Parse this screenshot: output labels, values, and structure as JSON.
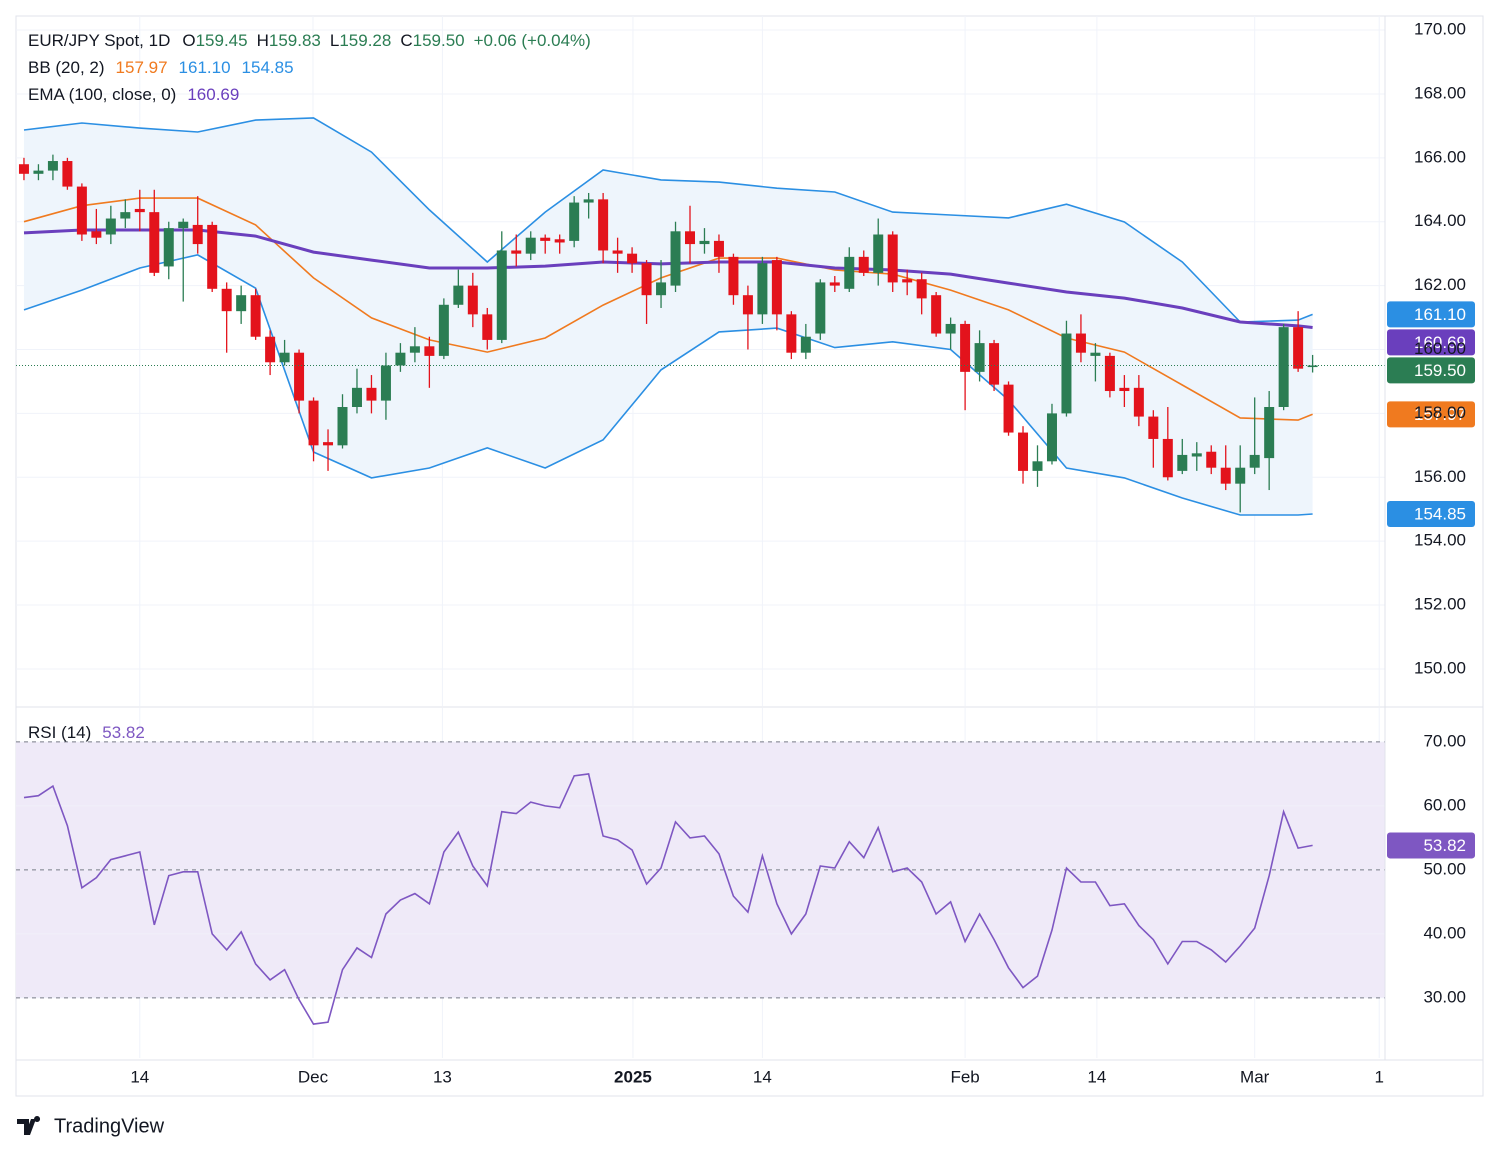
{
  "chart_data": [
    {
      "type": "candlestick",
      "title": "EUR/JPY Spot, 1D",
      "ohlc_letters": [
        "O",
        "H",
        "L",
        "C"
      ],
      "change": "+0.06 (+0.04%)",
      "up_color": "#2b7d53",
      "down_color": "#e3131c",
      "x": [
        0,
        1,
        2,
        3,
        4,
        5,
        6,
        7,
        8,
        9,
        10,
        11,
        12,
        13,
        14,
        15,
        16,
        17,
        18,
        19,
        20,
        21,
        22,
        23,
        24,
        25,
        26,
        27,
        28,
        29,
        30,
        31,
        32,
        33,
        34,
        35,
        36,
        37,
        38,
        39,
        40,
        41,
        42,
        43,
        44,
        45,
        46,
        47,
        48,
        49,
        50,
        51,
        52,
        53,
        54,
        55,
        56,
        57,
        58,
        59,
        60,
        61,
        62,
        63,
        64,
        65,
        66,
        67,
        68,
        69,
        70,
        71,
        72,
        73,
        74,
        75,
        76,
        77,
        78,
        79,
        80,
        81,
        82,
        83,
        84,
        85,
        86,
        87,
        88,
        89
      ],
      "open": [
        165.8,
        165.5,
        165.6,
        165.9,
        165.1,
        163.7,
        163.6,
        164.1,
        164.4,
        164.3,
        162.6,
        163.8,
        163.9,
        163.9,
        161.9,
        161.2,
        161.7,
        160.4,
        159.6,
        159.9,
        158.4,
        157.1,
        157.0,
        158.2,
        158.8,
        158.4,
        159.5,
        159.9,
        160.1,
        159.8,
        161.4,
        162.0,
        161.1,
        160.3,
        163.1,
        163.0,
        163.5,
        163.45,
        163.4,
        164.6,
        164.7,
        163.1,
        163.0,
        162.7,
        161.7,
        162.0,
        163.7,
        163.3,
        163.4,
        162.9,
        161.7,
        161.1,
        162.8,
        161.1,
        159.9,
        160.5,
        162.1,
        161.9,
        162.9,
        162.4,
        163.6,
        162.2,
        162.2,
        161.7,
        160.5,
        160.8,
        159.3,
        160.2,
        158.9,
        157.4,
        156.2,
        156.5,
        158.0,
        160.5,
        159.8,
        159.8,
        158.8,
        158.8,
        157.9,
        157.2,
        156.2,
        156.65,
        156.8,
        156.3,
        155.8,
        156.3,
        156.6,
        158.2,
        160.7,
        159.45
      ],
      "high": [
        166.0,
        165.8,
        166.1,
        166.0,
        165.2,
        164.4,
        164.5,
        164.7,
        165.0,
        165.0,
        164.0,
        164.1,
        164.8,
        164.0,
        162.1,
        162.0,
        161.9,
        160.6,
        160.3,
        160.0,
        158.5,
        157.5,
        158.6,
        159.4,
        159.2,
        159.9,
        160.2,
        160.7,
        160.4,
        161.6,
        162.5,
        162.4,
        161.3,
        163.7,
        163.6,
        163.7,
        163.6,
        163.6,
        164.8,
        164.9,
        164.9,
        163.5,
        163.2,
        162.8,
        162.8,
        164.0,
        164.5,
        163.8,
        163.6,
        163.0,
        162.0,
        162.9,
        162.9,
        161.2,
        160.8,
        162.2,
        162.3,
        163.2,
        163.1,
        164.1,
        163.7,
        162.5,
        162.4,
        161.8,
        161.0,
        160.9,
        160.6,
        160.3,
        159.0,
        157.6,
        157.0,
        158.3,
        160.9,
        161.1,
        160.2,
        159.9,
        159.2,
        159.2,
        158.1,
        158.2,
        157.2,
        157.1,
        157.0,
        157.0,
        157.0,
        158.5,
        158.7,
        160.8,
        161.2,
        159.83
      ],
      "low": [
        165.3,
        165.3,
        165.3,
        165.0,
        163.4,
        163.3,
        163.3,
        163.8,
        163.7,
        162.3,
        162.2,
        161.5,
        163.0,
        161.8,
        159.9,
        160.8,
        160.3,
        159.2,
        159.5,
        158.0,
        156.5,
        156.2,
        156.9,
        158.0,
        158.0,
        157.8,
        159.3,
        159.6,
        158.8,
        159.7,
        161.3,
        160.7,
        160.0,
        160.2,
        162.6,
        162.8,
        163.0,
        163.0,
        163.2,
        164.1,
        162.7,
        162.4,
        162.4,
        160.8,
        161.3,
        161.8,
        162.7,
        163.0,
        162.4,
        161.4,
        160.0,
        160.8,
        160.6,
        159.7,
        159.7,
        160.3,
        161.8,
        161.8,
        162.3,
        162.0,
        161.8,
        161.7,
        161.1,
        160.4,
        160.0,
        158.1,
        159.0,
        158.7,
        157.3,
        155.8,
        155.7,
        156.4,
        157.9,
        159.6,
        159.0,
        158.5,
        158.2,
        157.6,
        156.3,
        155.9,
        156.1,
        156.2,
        156.1,
        155.6,
        154.9,
        156.1,
        155.6,
        158.1,
        159.3,
        159.28
      ],
      "close": [
        165.5,
        165.6,
        165.9,
        165.1,
        163.6,
        163.5,
        164.1,
        164.3,
        164.3,
        162.4,
        163.8,
        164.0,
        163.3,
        161.9,
        161.2,
        161.7,
        160.4,
        159.6,
        159.9,
        158.4,
        157.0,
        157.0,
        158.2,
        158.8,
        158.4,
        159.5,
        159.9,
        160.1,
        159.8,
        161.4,
        162.0,
        161.1,
        160.3,
        163.1,
        163.0,
        163.5,
        163.4,
        163.35,
        164.6,
        164.7,
        163.1,
        163.0,
        162.7,
        161.7,
        162.1,
        163.7,
        163.3,
        163.4,
        162.9,
        161.7,
        161.1,
        162.7,
        161.1,
        159.9,
        160.4,
        162.1,
        162.0,
        162.9,
        162.4,
        163.6,
        162.1,
        162.1,
        161.6,
        160.5,
        160.8,
        159.3,
        160.2,
        158.9,
        157.4,
        156.2,
        156.5,
        158.0,
        160.5,
        159.9,
        159.9,
        158.7,
        158.7,
        157.9,
        157.2,
        156.0,
        156.7,
        156.75,
        156.3,
        155.8,
        156.3,
        156.7,
        158.2,
        160.7,
        159.4,
        159.5
      ],
      "close_labels": [
        null,
        null,
        null,
        null,
        null,
        null,
        null,
        null,
        null,
        null,
        null,
        null,
        null,
        null,
        null,
        null,
        null,
        null,
        null,
        null,
        null,
        null,
        null,
        null,
        null,
        null,
        null,
        null,
        null,
        null,
        null,
        null,
        null,
        null,
        null,
        null,
        null,
        null,
        null,
        null,
        null,
        null,
        null,
        null,
        null,
        null,
        null,
        null,
        null,
        null,
        null,
        null,
        null,
        null,
        null,
        null,
        null,
        null,
        null,
        null,
        null,
        null,
        null,
        null,
        null,
        null,
        null,
        null,
        null,
        null,
        null,
        null,
        null,
        null,
        null,
        null,
        null,
        null,
        null,
        null,
        null,
        null,
        null,
        null,
        null,
        null,
        null,
        null,
        null,
        "159.50"
      ],
      "bollinger": {
        "name": "BB (20, 2)",
        "fill": "#eef5fc",
        "x": [
          0,
          4,
          8,
          12,
          16,
          20,
          24,
          28,
          32,
          36,
          40,
          44,
          48,
          52,
          56,
          60,
          64,
          68,
          72,
          76,
          80,
          84,
          88,
          89
        ],
        "basis": {
          "color": "#f07a1f",
          "values": [
            164.0,
            164.5,
            164.74,
            164.74,
            163.9,
            162.24,
            160.99,
            160.3,
            159.92,
            160.36,
            161.39,
            162.24,
            162.86,
            162.86,
            162.49,
            162.36,
            161.86,
            161.24,
            160.36,
            159.92,
            158.89,
            157.86,
            157.79,
            157.97
          ]
        },
        "upper": {
          "color": "#2b8fe3",
          "values": [
            166.87,
            167.09,
            166.93,
            166.81,
            167.18,
            167.25,
            166.18,
            164.37,
            162.74,
            164.3,
            165.62,
            165.31,
            165.24,
            165.05,
            164.93,
            164.3,
            164.21,
            164.12,
            164.55,
            163.99,
            162.74,
            160.86,
            160.92,
            161.1
          ],
          "value_labels": [
            null,
            null,
            null,
            null,
            null,
            null,
            null,
            null,
            null,
            null,
            null,
            null,
            null,
            null,
            null,
            null,
            null,
            null,
            null,
            null,
            null,
            null,
            null,
            "161.10"
          ]
        },
        "lower": {
          "color": "#2b8fe3",
          "values": [
            161.24,
            161.86,
            162.55,
            162.96,
            161.92,
            156.79,
            155.98,
            156.29,
            156.92,
            156.29,
            157.17,
            159.36,
            160.55,
            160.67,
            160.06,
            160.24,
            160.0,
            158.42,
            156.29,
            155.98,
            155.35,
            154.82,
            154.82,
            154.85
          ]
        }
      },
      "ema": {
        "name": "EMA (100, close, 0)",
        "color": "#6a3fbd",
        "x": [
          0,
          4,
          8,
          12,
          16,
          20,
          24,
          28,
          32,
          36,
          40,
          44,
          48,
          52,
          56,
          60,
          64,
          68,
          72,
          76,
          80,
          84,
          88,
          89
        ],
        "values": [
          163.65,
          163.74,
          163.74,
          163.74,
          163.55,
          163.05,
          162.8,
          162.55,
          162.55,
          162.61,
          162.74,
          162.68,
          162.74,
          162.74,
          162.55,
          162.49,
          162.36,
          162.08,
          161.8,
          161.61,
          161.3,
          160.86,
          160.74,
          160.69
        ]
      },
      "xlim": [
        -0.55,
        94
      ],
      "xticks": [
        {
          "value": 8,
          "label": "14"
        },
        {
          "value": 19.96,
          "label": "Dec"
        },
        {
          "value": 28.9,
          "label": "13"
        },
        {
          "value": 42.06,
          "label": "2025",
          "bold": true
        },
        {
          "value": 51,
          "label": "14"
        },
        {
          "value": 65,
          "label": "Feb"
        },
        {
          "value": 74.1,
          "label": "14"
        },
        {
          "value": 85,
          "label": "Mar"
        },
        {
          "value": 93.6,
          "label": "1"
        }
      ],
      "ylim": [
        148.84,
        170.44
      ],
      "yticks": [
        {
          "value": 150,
          "label": "150.00"
        },
        {
          "value": 152,
          "label": "152.00"
        },
        {
          "value": 154,
          "label": "154.00"
        },
        {
          "value": 156,
          "label": "156.00"
        },
        {
          "value": 158,
          "label": "158.00"
        },
        {
          "value": 160,
          "label": "160.00"
        },
        {
          "value": 162,
          "label": "162.00"
        },
        {
          "value": 164,
          "label": "164.00"
        },
        {
          "value": 166,
          "label": "166.00"
        },
        {
          "value": 168,
          "label": "168.00"
        },
        {
          "value": 170,
          "label": "170.00"
        }
      ],
      "grid": true
    },
    {
      "type": "line",
      "title": "RSI (14)",
      "color": "#7e57c2",
      "band_color": "#efeaf8",
      "x": [
        0,
        1,
        2,
        3,
        4,
        5,
        6,
        7,
        8,
        9,
        10,
        11,
        12,
        13,
        14,
        15,
        16,
        17,
        18,
        19,
        20,
        21,
        22,
        23,
        24,
        25,
        26,
        27,
        28,
        29,
        30,
        31,
        32,
        33,
        34,
        35,
        36,
        37,
        38,
        39,
        40,
        41,
        42,
        43,
        44,
        45,
        46,
        47,
        48,
        49,
        50,
        51,
        52,
        53,
        54,
        55,
        56,
        57,
        58,
        59,
        60,
        61,
        62,
        63,
        64,
        65,
        66,
        67,
        68,
        69,
        70,
        71,
        72,
        73,
        74,
        75,
        76,
        77,
        78,
        79,
        80,
        81,
        82,
        83,
        84,
        85,
        86,
        87,
        88,
        89
      ],
      "values": [
        61.3,
        61.6,
        63.1,
        56.9,
        47.2,
        48.8,
        51.6,
        52.2,
        52.8,
        41.4,
        49.1,
        49.7,
        49.7,
        40.0,
        37.5,
        40.3,
        35.3,
        32.8,
        34.4,
        29.7,
        25.9,
        26.2,
        34.4,
        37.8,
        36.3,
        43.1,
        45.3,
        46.3,
        44.7,
        52.8,
        55.9,
        50.6,
        47.5,
        59.1,
        58.8,
        60.6,
        60.0,
        59.7,
        64.7,
        65.0,
        55.3,
        54.7,
        53.1,
        47.8,
        50.3,
        57.5,
        55.0,
        55.3,
        52.5,
        45.9,
        43.4,
        52.2,
        44.7,
        40.0,
        43.1,
        50.6,
        50.3,
        54.4,
        51.9,
        56.6,
        49.7,
        50.3,
        48.1,
        43.1,
        45.0,
        38.8,
        43.1,
        39.1,
        34.7,
        31.6,
        33.4,
        40.6,
        50.3,
        48.1,
        48.1,
        44.4,
        44.7,
        41.3,
        39.1,
        35.3,
        38.8,
        38.8,
        37.5,
        35.6,
        38.1,
        40.9,
        49.1,
        59.1,
        53.4,
        53.82
      ],
      "band": [
        30,
        70
      ],
      "middle": 50,
      "xlim": [
        -0.55,
        94
      ],
      "ylim": [
        20.6,
        75.3
      ],
      "yticks": [
        {
          "value": 30,
          "label": "30.00"
        },
        {
          "value": 40,
          "label": "40.00"
        },
        {
          "value": 50,
          "label": "50.00"
        },
        {
          "value": 60,
          "label": "60.00"
        },
        {
          "value": 70,
          "label": "70.00"
        }
      ],
      "grid": true
    }
  ],
  "footer": {
    "brand": "TradingView"
  }
}
